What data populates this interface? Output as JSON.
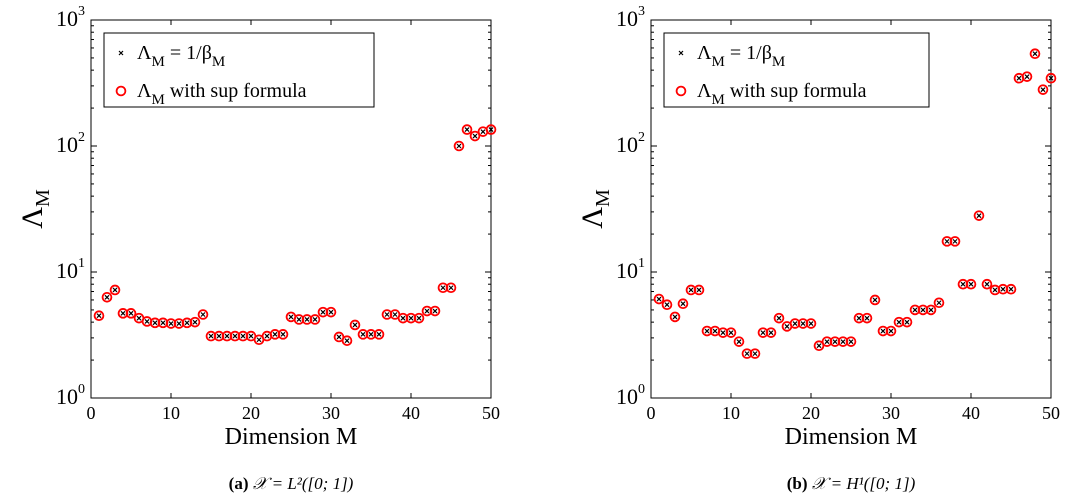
{
  "chart_data": [
    {
      "type": "scatter",
      "caption": {
        "label": "(a)",
        "text": "𝒳 = L²([0; 1])"
      },
      "xlabel": "Dimension M",
      "ylabel": {
        "base": "Λ",
        "sub": "M"
      },
      "xlim": [
        0,
        50
      ],
      "ylim": [
        1,
        1000
      ],
      "yscale": "log",
      "grid": false,
      "legend_position": "top-left",
      "x_ticks": [
        0,
        10,
        20,
        30,
        40,
        50
      ],
      "y_ticks": [
        {
          "base": "10",
          "exp": "0",
          "value": 1
        },
        {
          "base": "10",
          "exp": "1",
          "value": 10
        },
        {
          "base": "10",
          "exp": "2",
          "value": 100
        },
        {
          "base": "10",
          "exp": "3",
          "value": 1000
        }
      ],
      "legend": [
        {
          "marker": "x",
          "parts": [
            {
              "t": "Λ"
            },
            {
              "t": "M",
              "sub": true
            },
            {
              "t": " = 1/β"
            },
            {
              "t": "M",
              "sub": true
            }
          ]
        },
        {
          "marker": "o",
          "parts": [
            {
              "t": "Λ"
            },
            {
              "t": "M",
              "sub": true
            },
            {
              "t": " with sup formula"
            }
          ]
        }
      ],
      "x": [
        1,
        2,
        3,
        4,
        5,
        6,
        7,
        8,
        9,
        10,
        11,
        12,
        13,
        14,
        15,
        16,
        17,
        18,
        19,
        20,
        21,
        22,
        23,
        24,
        25,
        26,
        27,
        28,
        29,
        30,
        31,
        32,
        33,
        34,
        35,
        36,
        37,
        38,
        39,
        40,
        41,
        42,
        43,
        44,
        45,
        46,
        47,
        48,
        49,
        50
      ],
      "series": [
        {
          "marker": "x",
          "color": "#000000",
          "values": [
            4.5,
            6.3,
            7.2,
            4.7,
            4.7,
            4.3,
            4.05,
            3.95,
            3.95,
            3.9,
            3.9,
            3.95,
            4.0,
            4.6,
            3.1,
            3.1,
            3.1,
            3.1,
            3.1,
            3.1,
            2.9,
            3.1,
            3.2,
            3.2,
            4.4,
            4.2,
            4.2,
            4.2,
            4.8,
            4.8,
            3.05,
            2.85,
            3.8,
            3.2,
            3.2,
            3.2,
            4.6,
            4.6,
            4.3,
            4.3,
            4.3,
            4.9,
            4.9,
            7.5,
            7.5,
            100,
            135,
            120,
            130,
            135
          ]
        },
        {
          "marker": "o",
          "color": "#ff0000",
          "values": [
            4.5,
            6.3,
            7.2,
            4.7,
            4.7,
            4.3,
            4.05,
            3.95,
            3.95,
            3.9,
            3.9,
            3.95,
            4.0,
            4.6,
            3.1,
            3.1,
            3.1,
            3.1,
            3.1,
            3.1,
            2.9,
            3.1,
            3.2,
            3.2,
            4.4,
            4.2,
            4.2,
            4.2,
            4.8,
            4.8,
            3.05,
            2.85,
            3.8,
            3.2,
            3.2,
            3.2,
            4.6,
            4.6,
            4.3,
            4.3,
            4.3,
            4.9,
            4.9,
            7.5,
            7.5,
            100,
            135,
            120,
            130,
            135
          ]
        }
      ]
    },
    {
      "type": "scatter",
      "caption": {
        "label": "(b)",
        "text": "𝒳 = H¹([0; 1])"
      },
      "xlabel": "Dimension M",
      "ylabel": {
        "base": "Λ",
        "sub": "M"
      },
      "xlim": [
        0,
        50
      ],
      "ylim": [
        1,
        1000
      ],
      "yscale": "log",
      "grid": false,
      "legend_position": "top-left",
      "x_ticks": [
        0,
        10,
        20,
        30,
        40,
        50
      ],
      "y_ticks": [
        {
          "base": "10",
          "exp": "0",
          "value": 1
        },
        {
          "base": "10",
          "exp": "1",
          "value": 10
        },
        {
          "base": "10",
          "exp": "2",
          "value": 100
        },
        {
          "base": "10",
          "exp": "3",
          "value": 1000
        }
      ],
      "legend": [
        {
          "marker": "x",
          "parts": [
            {
              "t": "Λ"
            },
            {
              "t": "M",
              "sub": true
            },
            {
              "t": " = 1/β"
            },
            {
              "t": "M",
              "sub": true
            }
          ]
        },
        {
          "marker": "o",
          "parts": [
            {
              "t": "Λ"
            },
            {
              "t": "M",
              "sub": true
            },
            {
              "t": " with sup formula"
            }
          ]
        }
      ],
      "x": [
        1,
        2,
        3,
        4,
        5,
        6,
        7,
        8,
        9,
        10,
        11,
        12,
        13,
        14,
        15,
        16,
        17,
        18,
        19,
        20,
        21,
        22,
        23,
        24,
        25,
        26,
        27,
        28,
        29,
        30,
        31,
        32,
        33,
        34,
        35,
        36,
        37,
        38,
        39,
        40,
        41,
        42,
        43,
        44,
        45,
        46,
        47,
        48,
        49,
        50
      ],
      "series": [
        {
          "marker": "x",
          "color": "#000000",
          "values": [
            6.1,
            5.5,
            4.4,
            5.6,
            7.2,
            7.2,
            3.4,
            3.4,
            3.3,
            3.3,
            2.8,
            2.25,
            2.25,
            3.3,
            3.3,
            4.3,
            3.7,
            3.9,
            3.9,
            3.9,
            2.6,
            2.8,
            2.8,
            2.8,
            2.8,
            4.3,
            4.3,
            6.0,
            3.4,
            3.4,
            4.0,
            4.0,
            5.0,
            5.0,
            5.0,
            5.7,
            17.5,
            17.5,
            8.0,
            8.0,
            28,
            8.0,
            7.2,
            7.3,
            7.3,
            345,
            355,
            540,
            280,
            345
          ]
        },
        {
          "marker": "o",
          "color": "#ff0000",
          "values": [
            6.1,
            5.5,
            4.4,
            5.6,
            7.2,
            7.2,
            3.4,
            3.4,
            3.3,
            3.3,
            2.8,
            2.25,
            2.25,
            3.3,
            3.3,
            4.3,
            3.7,
            3.9,
            3.9,
            3.9,
            2.6,
            2.8,
            2.8,
            2.8,
            2.8,
            4.3,
            4.3,
            6.0,
            3.4,
            3.4,
            4.0,
            4.0,
            5.0,
            5.0,
            5.0,
            5.7,
            17.5,
            17.5,
            8.0,
            8.0,
            28,
            8.0,
            7.2,
            7.3,
            7.3,
            345,
            355,
            540,
            280,
            345
          ]
        }
      ]
    }
  ]
}
